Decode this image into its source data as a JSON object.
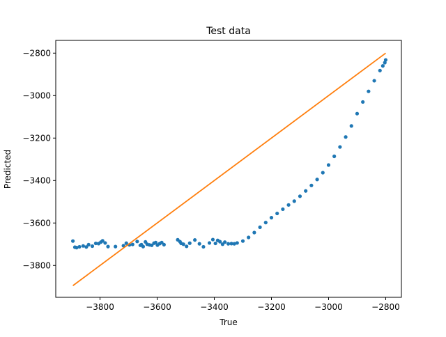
{
  "chart_data": {
    "type": "scatter",
    "title": "Test data",
    "xlabel": "True",
    "ylabel": "Predicted",
    "xlim": [
      -3955,
      -2745
    ],
    "ylim": [
      -3950,
      -2740
    ],
    "xticks": [
      -3800,
      -3600,
      -3400,
      -3200,
      -3000,
      -2800
    ],
    "yticks": [
      -2800,
      -3000,
      -3200,
      -3400,
      -3600,
      -3800
    ],
    "xtick_labels": [
      "−3800",
      "−3600",
      "−3400",
      "−3200",
      "−3000",
      "−2800"
    ],
    "ytick_labels": [
      "−2800",
      "−3000",
      "−3200",
      "−3400",
      "−3600",
      "−3800"
    ],
    "grid": false,
    "colors": {
      "points": "#1f77b4",
      "line": "#ff7f0e"
    },
    "series": [
      {
        "kind": "scatter",
        "x": [
          -3895,
          -3888,
          -3882,
          -3872,
          -3859,
          -3848,
          -3840,
          -3827,
          -3815,
          -3805,
          -3797,
          -3791,
          -3782,
          -3772,
          -3746,
          -3718,
          -3708,
          -3697,
          -3686,
          -3670,
          -3659,
          -3655,
          -3649,
          -3641,
          -3635,
          -3627,
          -3619,
          -3611,
          -3605,
          -3599,
          -3591,
          -3584,
          -3576,
          -3528,
          -3520,
          -3516,
          -3508,
          -3497,
          -3486,
          -3468,
          -3452,
          -3438,
          -3417,
          -3405,
          -3396,
          -3388,
          -3380,
          -3371,
          -3363,
          -3351,
          -3340,
          -3330,
          -3320,
          -3300,
          -3280,
          -3260,
          -3240,
          -3220,
          -3200,
          -3180,
          -3160,
          -3140,
          -3120,
          -3100,
          -3080,
          -3060,
          -3040,
          -3020,
          -3000,
          -2980,
          -2960,
          -2940,
          -2920,
          -2900,
          -2880,
          -2860,
          -2840,
          -2820,
          -2810,
          -2803,
          -2800
        ],
        "y": [
          -3685,
          -3714,
          -3716,
          -3712,
          -3708,
          -3713,
          -3702,
          -3709,
          -3696,
          -3697,
          -3690,
          -3684,
          -3694,
          -3711,
          -3711,
          -3707,
          -3695,
          -3703,
          -3701,
          -3687,
          -3705,
          -3702,
          -3711,
          -3689,
          -3700,
          -3703,
          -3705,
          -3695,
          -3692,
          -3704,
          -3697,
          -3692,
          -3702,
          -3679,
          -3688,
          -3696,
          -3700,
          -3710,
          -3695,
          -3680,
          -3698,
          -3712,
          -3694,
          -3678,
          -3696,
          -3682,
          -3688,
          -3700,
          -3690,
          -3698,
          -3697,
          -3698,
          -3694,
          -3685,
          -3668,
          -3645,
          -3620,
          -3598,
          -3575,
          -3555,
          -3535,
          -3515,
          -3497,
          -3474,
          -3449,
          -3423,
          -3395,
          -3363,
          -3327,
          -3286,
          -3242,
          -3195,
          -3143,
          -3085,
          -3030,
          -2980,
          -2930,
          -2882,
          -2860,
          -2845,
          -2832
        ]
      },
      {
        "kind": "line",
        "x": [
          -3895,
          -2800
        ],
        "y": [
          -3895,
          -2800
        ]
      }
    ]
  }
}
